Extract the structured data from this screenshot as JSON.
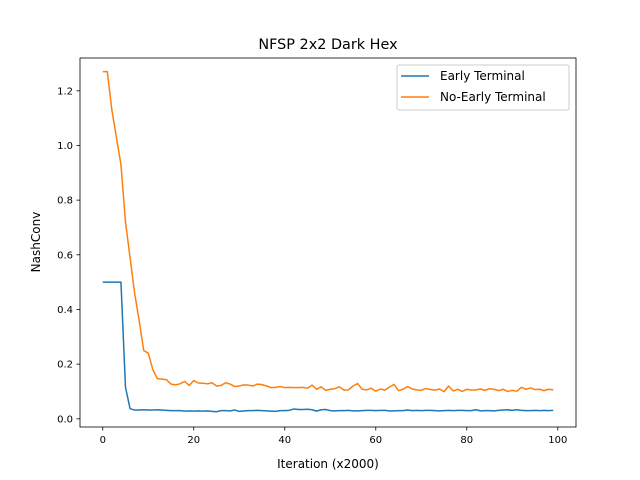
{
  "chart_data": {
    "type": "line",
    "title": "NFSP 2x2 Dark Hex",
    "xlabel": "Iteration (x2000)",
    "ylabel": "NashConv",
    "xlim": [
      -5,
      104
    ],
    "ylim": [
      -0.03,
      1.32
    ],
    "xticks": [
      0,
      20,
      40,
      60,
      80,
      100
    ],
    "xtick_labels": [
      "0",
      "20",
      "40",
      "60",
      "80",
      "100"
    ],
    "yticks": [
      0.0,
      0.2,
      0.4,
      0.6,
      0.8,
      1.0,
      1.2
    ],
    "ytick_labels": [
      "0.0",
      "0.2",
      "0.4",
      "0.6",
      "0.8",
      "1.0",
      "1.2"
    ],
    "grid": false,
    "legend_position": "top-right",
    "series": [
      {
        "name": "Early Terminal",
        "color": "#1f77b4",
        "x": [
          0,
          1,
          2,
          3,
          4,
          5,
          6,
          7,
          8,
          9,
          10,
          11,
          12,
          13,
          14,
          15,
          16,
          17,
          18,
          19,
          20,
          21,
          22,
          23,
          24,
          25,
          26,
          27,
          28,
          29,
          30,
          31,
          32,
          33,
          34,
          35,
          36,
          37,
          38,
          39,
          40,
          41,
          42,
          43,
          44,
          45,
          46,
          47,
          48,
          49,
          50,
          51,
          52,
          53,
          54,
          55,
          56,
          57,
          58,
          59,
          60,
          61,
          62,
          63,
          64,
          65,
          66,
          67,
          68,
          69,
          70,
          71,
          72,
          73,
          74,
          75,
          76,
          77,
          78,
          79,
          80,
          81,
          82,
          83,
          84,
          85,
          86,
          87,
          88,
          89,
          90,
          91,
          92,
          93,
          94,
          95,
          96,
          97,
          98,
          99
        ],
        "values": [
          0.5,
          0.5,
          0.5,
          0.5,
          0.5,
          0.115,
          0.037,
          0.032,
          0.032,
          0.033,
          0.032,
          0.032,
          0.033,
          0.032,
          0.031,
          0.03,
          0.03,
          0.03,
          0.028,
          0.029,
          0.028,
          0.029,
          0.028,
          0.029,
          0.027,
          0.026,
          0.03,
          0.03,
          0.029,
          0.032,
          0.027,
          0.029,
          0.03,
          0.03,
          0.031,
          0.03,
          0.029,
          0.028,
          0.027,
          0.03,
          0.03,
          0.031,
          0.036,
          0.034,
          0.034,
          0.035,
          0.033,
          0.028,
          0.033,
          0.034,
          0.03,
          0.029,
          0.03,
          0.03,
          0.031,
          0.029,
          0.029,
          0.03,
          0.031,
          0.031,
          0.03,
          0.031,
          0.031,
          0.029,
          0.029,
          0.03,
          0.03,
          0.032,
          0.03,
          0.031,
          0.03,
          0.031,
          0.031,
          0.03,
          0.029,
          0.03,
          0.031,
          0.03,
          0.031,
          0.031,
          0.03,
          0.03,
          0.033,
          0.029,
          0.03,
          0.03,
          0.029,
          0.031,
          0.032,
          0.033,
          0.031,
          0.033,
          0.031,
          0.03,
          0.03,
          0.031,
          0.03,
          0.031,
          0.03,
          0.031
        ]
      },
      {
        "name": "No-Early Terminal",
        "color": "#ff7f0e",
        "x": [
          0,
          1,
          2,
          3,
          4,
          5,
          6,
          7,
          8,
          9,
          10,
          11,
          12,
          13,
          14,
          15,
          16,
          17,
          18,
          19,
          20,
          21,
          22,
          23,
          24,
          25,
          26,
          27,
          28,
          29,
          30,
          31,
          32,
          33,
          34,
          35,
          36,
          37,
          38,
          39,
          40,
          41,
          42,
          43,
          44,
          45,
          46,
          47,
          48,
          49,
          50,
          51,
          52,
          53,
          54,
          55,
          56,
          57,
          58,
          59,
          60,
          61,
          62,
          63,
          64,
          65,
          66,
          67,
          68,
          69,
          70,
          71,
          72,
          73,
          74,
          75,
          76,
          77,
          78,
          79,
          80,
          81,
          82,
          83,
          84,
          85,
          86,
          87,
          88,
          89,
          90,
          91,
          92,
          93,
          94,
          95,
          96,
          97,
          98,
          99
        ],
        "values": [
          1.27,
          1.27,
          1.13,
          1.03,
          0.93,
          0.72,
          0.59,
          0.46,
          0.36,
          0.25,
          0.24,
          0.18,
          0.147,
          0.145,
          0.143,
          0.127,
          0.124,
          0.128,
          0.137,
          0.122,
          0.14,
          0.131,
          0.13,
          0.128,
          0.132,
          0.12,
          0.122,
          0.132,
          0.127,
          0.118,
          0.12,
          0.124,
          0.123,
          0.12,
          0.127,
          0.125,
          0.12,
          0.114,
          0.115,
          0.118,
          0.114,
          0.115,
          0.114,
          0.114,
          0.115,
          0.112,
          0.123,
          0.108,
          0.117,
          0.104,
          0.108,
          0.11,
          0.117,
          0.105,
          0.106,
          0.12,
          0.129,
          0.108,
          0.106,
          0.112,
          0.101,
          0.109,
          0.105,
          0.116,
          0.126,
          0.103,
          0.108,
          0.118,
          0.109,
          0.106,
          0.104,
          0.111,
          0.107,
          0.105,
          0.109,
          0.099,
          0.12,
          0.102,
          0.108,
          0.1,
          0.108,
          0.105,
          0.106,
          0.109,
          0.104,
          0.11,
          0.108,
          0.103,
          0.108,
          0.1,
          0.104,
          0.101,
          0.115,
          0.108,
          0.113,
          0.107,
          0.108,
          0.103,
          0.108,
          0.106
        ]
      }
    ]
  }
}
